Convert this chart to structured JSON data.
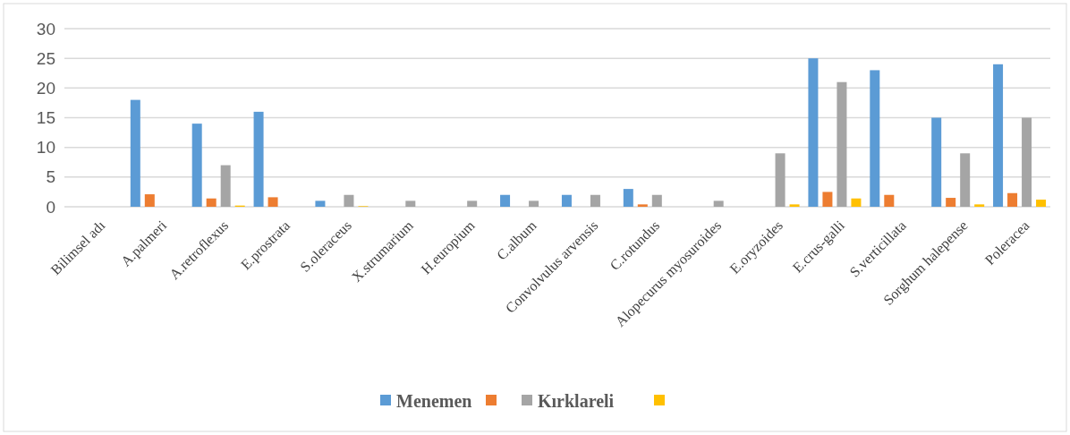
{
  "chart_data": {
    "type": "bar",
    "categories": [
      "Bilimsel adı",
      "A.palmeri",
      "A.retroflexus",
      "E.prostrata",
      "S.oleraceus",
      "X.strumarium",
      "H.europium",
      "C.album",
      "Convolvulus arvensis",
      "C.rotundus",
      "Alopecurus myosuroides",
      "E.oryzoides",
      "E.crus-galli",
      "S.verticillata",
      "Sorghum halepense",
      "Poleracea"
    ],
    "series": [
      {
        "name": "Menemen",
        "color": "#5b9bd5",
        "values": [
          null,
          18,
          14,
          16,
          1,
          0,
          0,
          2,
          2,
          3,
          0,
          0,
          25,
          23,
          15,
          24
        ]
      },
      {
        "color": "#ed7d31",
        "values": [
          null,
          2.1,
          1.4,
          1.6,
          0,
          0,
          0,
          0,
          0,
          0.4,
          0,
          0,
          2.5,
          2,
          1.5,
          2.3
        ]
      },
      {
        "name": "Kırklareli",
        "color": "#a5a5a5",
        "values": [
          null,
          0,
          7,
          0,
          2,
          1,
          1,
          1,
          2,
          2,
          1,
          9,
          21,
          0,
          9,
          15
        ]
      },
      {
        "color": "#ffc000",
        "values": [
          null,
          0,
          0.2,
          0,
          0.1,
          0,
          0,
          0,
          0,
          0,
          0,
          0.4,
          1.4,
          0,
          0.4,
          1.2
        ]
      }
    ],
    "ylim": [
      0,
      30
    ],
    "yticks": [
      0,
      5,
      10,
      15,
      20,
      25,
      30
    ],
    "grid": "y",
    "legend": "bottom"
  }
}
